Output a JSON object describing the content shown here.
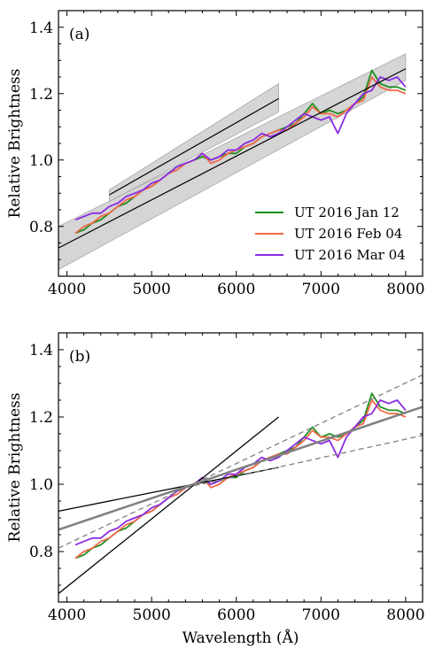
{
  "chart_data": [
    {
      "type": "line",
      "panel_label": "(a)",
      "xlabel": "",
      "ylabel": "Relative Brightness",
      "xlim": [
        3900,
        8200
      ],
      "ylim": [
        0.65,
        1.45
      ],
      "xticks": [
        4000,
        5000,
        6000,
        7000,
        8000
      ],
      "yticks": [
        0.8,
        1.0,
        1.2,
        1.4
      ],
      "xtick_labels": [
        "4000",
        "5000",
        "6000",
        "7000",
        "8000"
      ],
      "ytick_labels": [
        "0.8",
        "1.0",
        "1.2",
        "1.4"
      ],
      "legend_position": "lower-right",
      "series": [
        {
          "name": "UT 2016 Jan 12",
          "color": "#1f8f1f",
          "x": [
            4100,
            4200,
            4300,
            4400,
            4500,
            4600,
            4700,
            4800,
            4900,
            5000,
            5100,
            5200,
            5300,
            5400,
            5500,
            5600,
            5700,
            5800,
            5900,
            6000,
            6100,
            6200,
            6300,
            6400,
            6500,
            6600,
            6700,
            6800,
            6900,
            7000,
            7100,
            7200,
            7300,
            7400,
            7500,
            7600,
            7700,
            7800,
            7900,
            8000
          ],
          "y": [
            0.78,
            0.79,
            0.81,
            0.82,
            0.84,
            0.86,
            0.87,
            0.89,
            0.91,
            0.92,
            0.94,
            0.96,
            0.98,
            0.99,
            1.0,
            1.01,
            1.0,
            1.01,
            1.02,
            1.02,
            1.04,
            1.05,
            1.07,
            1.08,
            1.09,
            1.1,
            1.11,
            1.14,
            1.17,
            1.14,
            1.15,
            1.14,
            1.15,
            1.17,
            1.19,
            1.27,
            1.23,
            1.22,
            1.22,
            1.21
          ]
        },
        {
          "name": "UT 2016 Feb 04",
          "color": "#f2684a",
          "x": [
            4100,
            4200,
            4300,
            4400,
            4500,
            4600,
            4700,
            4800,
            4900,
            5000,
            5100,
            5200,
            5300,
            5400,
            5500,
            5600,
            5700,
            5800,
            5900,
            6000,
            6100,
            6200,
            6300,
            6400,
            6500,
            6600,
            6700,
            6800,
            6900,
            7000,
            7100,
            7200,
            7300,
            7400,
            7500,
            7600,
            7700,
            7800,
            7900,
            8000
          ],
          "y": [
            0.78,
            0.8,
            0.81,
            0.83,
            0.84,
            0.86,
            0.88,
            0.89,
            0.91,
            0.92,
            0.94,
            0.96,
            0.97,
            0.99,
            1.0,
            1.02,
            0.99,
            1.0,
            1.02,
            1.03,
            1.04,
            1.05,
            1.07,
            1.08,
            1.09,
            1.09,
            1.11,
            1.13,
            1.16,
            1.14,
            1.14,
            1.13,
            1.15,
            1.17,
            1.18,
            1.25,
            1.22,
            1.21,
            1.21,
            1.2
          ]
        },
        {
          "name": "UT 2016 Mar 04",
          "color": "#8a2be2",
          "x": [
            4100,
            4200,
            4300,
            4400,
            4500,
            4600,
            4700,
            4800,
            4900,
            5000,
            5100,
            5200,
            5300,
            5400,
            5500,
            5600,
            5700,
            5800,
            5900,
            6000,
            6100,
            6200,
            6300,
            6400,
            6500,
            6600,
            6700,
            6800,
            6900,
            7000,
            7100,
            7200,
            7300,
            7400,
            7500,
            7600,
            7700,
            7800,
            7900,
            8000
          ],
          "y": [
            0.82,
            0.83,
            0.84,
            0.84,
            0.86,
            0.87,
            0.89,
            0.9,
            0.91,
            0.93,
            0.94,
            0.96,
            0.98,
            0.99,
            1.0,
            1.02,
            1.0,
            1.01,
            1.03,
            1.03,
            1.05,
            1.06,
            1.08,
            1.07,
            1.08,
            1.1,
            1.12,
            1.14,
            1.13,
            1.12,
            1.13,
            1.08,
            1.14,
            1.17,
            1.2,
            1.21,
            1.25,
            1.24,
            1.25,
            1.22
          ]
        }
      ],
      "fits": [
        {
          "style": "solid",
          "color": "#000000",
          "x": [
            3900,
            8000
          ],
          "y": [
            0.735,
            1.275
          ]
        },
        {
          "style": "solid",
          "color": "#000000",
          "x": [
            4500,
            6500
          ],
          "y": [
            0.895,
            1.185
          ]
        }
      ],
      "bands": [
        {
          "color": "#bfbfbf",
          "x": [
            3900,
            8000
          ],
          "y_low": [
            0.67,
            1.24
          ],
          "y_high": [
            0.8,
            1.32
          ]
        },
        {
          "color": "#bfbfbf",
          "x": [
            4500,
            6500
          ],
          "y_low": [
            0.875,
            1.145
          ],
          "y_high": [
            0.91,
            1.23
          ]
        }
      ]
    },
    {
      "type": "line",
      "panel_label": "(b)",
      "xlabel": "Wavelength (Å)",
      "ylabel": "Relative Brightness",
      "xlim": [
        3900,
        8200
      ],
      "ylim": [
        0.65,
        1.45
      ],
      "xticks": [
        4000,
        5000,
        6000,
        7000,
        8000
      ],
      "yticks": [
        0.8,
        1.0,
        1.2,
        1.4
      ],
      "xtick_labels": [
        "4000",
        "5000",
        "6000",
        "7000",
        "8000"
      ],
      "ytick_labels": [
        "0.8",
        "1.0",
        "1.2",
        "1.4"
      ],
      "series": [
        {
          "name": "UT 2016 Jan 12",
          "color": "#1f8f1f",
          "x": [
            4100,
            4200,
            4300,
            4400,
            4500,
            4600,
            4700,
            4800,
            4900,
            5000,
            5100,
            5200,
            5300,
            5400,
            5500,
            5600,
            5700,
            5800,
            5900,
            6000,
            6100,
            6200,
            6300,
            6400,
            6500,
            6600,
            6700,
            6800,
            6900,
            7000,
            7100,
            7200,
            7300,
            7400,
            7500,
            7600,
            7700,
            7800,
            7900,
            8000
          ],
          "y": [
            0.78,
            0.79,
            0.81,
            0.82,
            0.84,
            0.86,
            0.87,
            0.89,
            0.91,
            0.92,
            0.94,
            0.96,
            0.98,
            0.99,
            1.0,
            1.01,
            1.0,
            1.01,
            1.02,
            1.02,
            1.04,
            1.05,
            1.07,
            1.08,
            1.09,
            1.1,
            1.11,
            1.14,
            1.17,
            1.14,
            1.15,
            1.14,
            1.15,
            1.17,
            1.19,
            1.27,
            1.23,
            1.22,
            1.22,
            1.21
          ]
        },
        {
          "name": "UT 2016 Feb 04",
          "color": "#f2684a",
          "x": [
            4100,
            4200,
            4300,
            4400,
            4500,
            4600,
            4700,
            4800,
            4900,
            5000,
            5100,
            5200,
            5300,
            5400,
            5500,
            5600,
            5700,
            5800,
            5900,
            6000,
            6100,
            6200,
            6300,
            6400,
            6500,
            6600,
            6700,
            6800,
            6900,
            7000,
            7100,
            7200,
            7300,
            7400,
            7500,
            7600,
            7700,
            7800,
            7900,
            8000
          ],
          "y": [
            0.78,
            0.8,
            0.81,
            0.83,
            0.84,
            0.86,
            0.88,
            0.89,
            0.91,
            0.92,
            0.94,
            0.96,
            0.97,
            0.99,
            1.0,
            1.02,
            0.99,
            1.0,
            1.02,
            1.03,
            1.04,
            1.05,
            1.07,
            1.08,
            1.09,
            1.09,
            1.11,
            1.13,
            1.16,
            1.14,
            1.14,
            1.13,
            1.15,
            1.17,
            1.18,
            1.25,
            1.22,
            1.21,
            1.21,
            1.2
          ]
        },
        {
          "name": "UT 2016 Mar 04",
          "color": "#8a2be2",
          "x": [
            4100,
            4200,
            4300,
            4400,
            4500,
            4600,
            4700,
            4800,
            4900,
            5000,
            5100,
            5200,
            5300,
            5400,
            5500,
            5600,
            5700,
            5800,
            5900,
            6000,
            6100,
            6200,
            6300,
            6400,
            6500,
            6600,
            6700,
            6800,
            6900,
            7000,
            7100,
            7200,
            7300,
            7400,
            7500,
            7600,
            7700,
            7800,
            7900,
            8000
          ],
          "y": [
            0.82,
            0.83,
            0.84,
            0.84,
            0.86,
            0.87,
            0.89,
            0.9,
            0.91,
            0.93,
            0.94,
            0.96,
            0.98,
            0.99,
            1.0,
            1.02,
            1.0,
            1.01,
            1.03,
            1.03,
            1.05,
            1.06,
            1.08,
            1.07,
            1.08,
            1.1,
            1.12,
            1.14,
            1.13,
            1.12,
            1.13,
            1.08,
            1.14,
            1.17,
            1.2,
            1.21,
            1.25,
            1.24,
            1.25,
            1.22
          ]
        }
      ],
      "fits": [
        {
          "style": "solid",
          "color": "#000000",
          "width": 1.3,
          "x": [
            3900,
            6500
          ],
          "y": [
            0.675,
            1.2
          ]
        },
        {
          "style": "solid",
          "color": "#000000",
          "width": 1.3,
          "x": [
            3900,
            6500
          ],
          "y": [
            0.92,
            1.05
          ]
        },
        {
          "style": "solid",
          "color": "#808080",
          "width": 2.5,
          "x": [
            3900,
            8200
          ],
          "y": [
            0.865,
            1.23
          ]
        },
        {
          "style": "dashed",
          "color": "#808080",
          "width": 1.3,
          "x": [
            3900,
            8200
          ],
          "y": [
            0.81,
            1.325
          ]
        },
        {
          "style": "dashed",
          "color": "#808080",
          "width": 1.3,
          "x": [
            5400,
            8200
          ],
          "y": [
            0.99,
            1.145
          ]
        }
      ],
      "bands": []
    }
  ]
}
